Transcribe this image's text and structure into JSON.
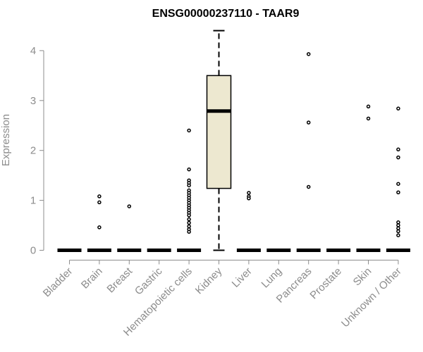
{
  "chart_data": {
    "type": "box",
    "title": "ENSG00000237110 - TAAR9",
    "ylabel": "Expression",
    "xlabel": "",
    "ylim": [
      0,
      4.45
    ],
    "yticks": [
      0,
      1,
      2,
      3,
      4
    ],
    "grid": false,
    "box_fill": "#ede8d0",
    "box_stroke": "#000000",
    "categories": [
      "Bladder",
      "Brain",
      "Breast",
      "Gastric",
      "Hematopoietic cells",
      "Kidney",
      "Liver",
      "Lung",
      "Pancreas",
      "Prostate",
      "Skin",
      "Unknown / Other"
    ],
    "boxes": [
      {
        "category": "Bladder",
        "q1": 0,
        "median": 0,
        "q3": 0,
        "whisker_low": 0,
        "whisker_high": 0,
        "outliers": []
      },
      {
        "category": "Brain",
        "q1": 0,
        "median": 0,
        "q3": 0,
        "whisker_low": 0,
        "whisker_high": 0,
        "outliers": [
          1.08,
          0.96,
          0.46
        ]
      },
      {
        "category": "Breast",
        "q1": 0,
        "median": 0,
        "q3": 0,
        "whisker_low": 0,
        "whisker_high": 0,
        "outliers": [
          0.88
        ]
      },
      {
        "category": "Gastric",
        "q1": 0,
        "median": 0,
        "q3": 0,
        "whisker_low": 0,
        "whisker_high": 0,
        "outliers": []
      },
      {
        "category": "Hematopoietic cells",
        "q1": 0,
        "median": 0,
        "q3": 0,
        "whisker_low": 0,
        "whisker_high": 0,
        "outliers": [
          2.4,
          1.62,
          1.4,
          1.35,
          1.3,
          1.2,
          1.15,
          1.1,
          1.05,
          1.0,
          0.95,
          0.9,
          0.85,
          0.8,
          0.75,
          0.7,
          0.62,
          0.55,
          0.48,
          0.42,
          0.37
        ]
      },
      {
        "category": "Kidney",
        "q1": 1.24,
        "median": 2.79,
        "q3": 3.5,
        "whisker_low": 0,
        "whisker_high": 4.4,
        "outliers": []
      },
      {
        "category": "Liver",
        "q1": 0,
        "median": 0,
        "q3": 0,
        "whisker_low": 0,
        "whisker_high": 0,
        "outliers": [
          1.15,
          1.08,
          1.04
        ]
      },
      {
        "category": "Lung",
        "q1": 0,
        "median": 0,
        "q3": 0,
        "whisker_low": 0,
        "whisker_high": 0,
        "outliers": []
      },
      {
        "category": "Pancreas",
        "q1": 0,
        "median": 0,
        "q3": 0,
        "whisker_low": 0,
        "whisker_high": 0,
        "outliers": [
          3.93,
          2.56,
          1.27
        ]
      },
      {
        "category": "Prostate",
        "q1": 0,
        "median": 0,
        "q3": 0,
        "whisker_low": 0,
        "whisker_high": 0,
        "outliers": []
      },
      {
        "category": "Skin",
        "q1": 0,
        "median": 0,
        "q3": 0,
        "whisker_low": 0,
        "whisker_high": 0,
        "outliers": [
          2.88,
          2.64
        ]
      },
      {
        "category": "Unknown / Other",
        "q1": 0,
        "median": 0,
        "q3": 0,
        "whisker_low": 0,
        "whisker_high": 0,
        "outliers": [
          2.84,
          2.02,
          1.86,
          1.33,
          1.16,
          0.56,
          0.5,
          0.44,
          0.38,
          0.3
        ]
      }
    ]
  }
}
